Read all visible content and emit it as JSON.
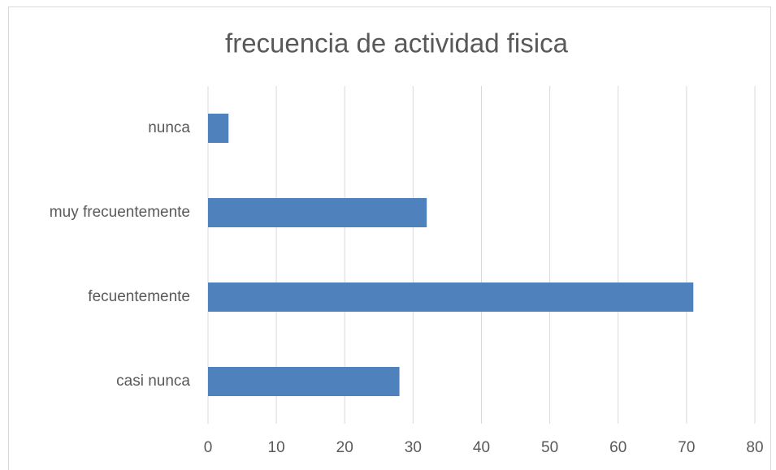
{
  "chart_data": {
    "type": "hbar",
    "title": "frecuencia de actividad fisica",
    "categories": [
      "casi nunca",
      "fecuentemente",
      "muy frecuentemente",
      "nunca"
    ],
    "values": [
      28,
      71,
      32,
      3
    ],
    "color": "#4f81bd",
    "xlim": [
      0,
      80
    ],
    "xticks": [
      0,
      10,
      20,
      30,
      40,
      50,
      60,
      70,
      80
    ],
    "grid": true
  }
}
